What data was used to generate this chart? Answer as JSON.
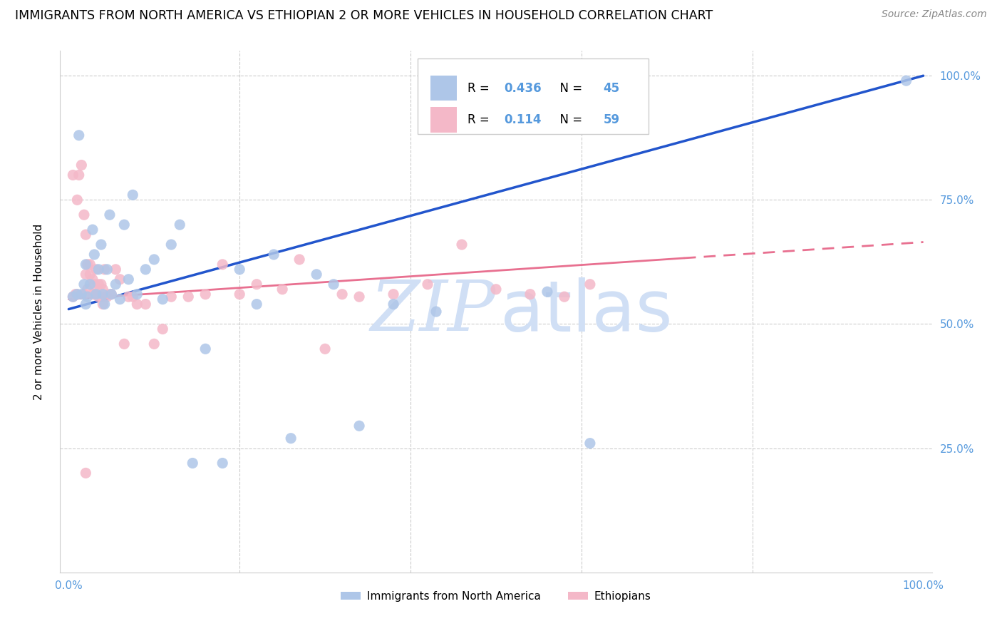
{
  "title": "IMMIGRANTS FROM NORTH AMERICA VS ETHIOPIAN 2 OR MORE VEHICLES IN HOUSEHOLD CORRELATION CHART",
  "source": "Source: ZipAtlas.com",
  "ylabel": "2 or more Vehicles in Household",
  "legend_r1": "R = 0.436",
  "legend_n1": "N = 45",
  "legend_r2": "R =  0.114",
  "legend_n2": "N = 59",
  "blue_color": "#aec6e8",
  "pink_color": "#f4b8c8",
  "trend_blue": "#2255cc",
  "trend_pink": "#e87090",
  "watermark_zip": "ZIP",
  "watermark_atlas": "atlas",
  "watermark_color": "#d0dff5",
  "tick_color": "#5599dd",
  "blue_scatter_x": [
    0.005,
    0.01,
    0.012,
    0.015,
    0.018,
    0.02,
    0.02,
    0.022,
    0.025,
    0.028,
    0.03,
    0.032,
    0.035,
    0.038,
    0.04,
    0.042,
    0.045,
    0.048,
    0.05,
    0.055,
    0.06,
    0.065,
    0.07,
    0.075,
    0.08,
    0.09,
    0.1,
    0.11,
    0.12,
    0.13,
    0.145,
    0.16,
    0.18,
    0.2,
    0.22,
    0.24,
    0.26,
    0.29,
    0.31,
    0.34,
    0.38,
    0.43,
    0.56,
    0.61,
    0.98
  ],
  "blue_scatter_y": [
    0.555,
    0.56,
    0.88,
    0.56,
    0.58,
    0.54,
    0.62,
    0.555,
    0.58,
    0.69,
    0.64,
    0.56,
    0.61,
    0.66,
    0.56,
    0.54,
    0.61,
    0.72,
    0.56,
    0.58,
    0.55,
    0.7,
    0.59,
    0.76,
    0.56,
    0.61,
    0.63,
    0.55,
    0.66,
    0.7,
    0.22,
    0.45,
    0.22,
    0.61,
    0.54,
    0.64,
    0.27,
    0.6,
    0.58,
    0.295,
    0.54,
    0.525,
    0.565,
    0.26,
    0.99
  ],
  "pink_scatter_x": [
    0.005,
    0.005,
    0.008,
    0.01,
    0.01,
    0.012,
    0.015,
    0.018,
    0.018,
    0.02,
    0.02,
    0.022,
    0.022,
    0.025,
    0.025,
    0.028,
    0.028,
    0.03,
    0.03,
    0.032,
    0.032,
    0.035,
    0.035,
    0.038,
    0.038,
    0.04,
    0.04,
    0.042,
    0.045,
    0.048,
    0.05,
    0.055,
    0.06,
    0.065,
    0.07,
    0.075,
    0.08,
    0.09,
    0.1,
    0.11,
    0.12,
    0.14,
    0.16,
    0.18,
    0.2,
    0.22,
    0.25,
    0.27,
    0.3,
    0.32,
    0.34,
    0.38,
    0.42,
    0.46,
    0.5,
    0.54,
    0.58,
    0.61,
    0.02
  ],
  "pink_scatter_y": [
    0.555,
    0.8,
    0.56,
    0.75,
    0.56,
    0.8,
    0.82,
    0.56,
    0.72,
    0.68,
    0.6,
    0.62,
    0.57,
    0.6,
    0.62,
    0.59,
    0.56,
    0.56,
    0.58,
    0.61,
    0.56,
    0.58,
    0.555,
    0.555,
    0.58,
    0.54,
    0.57,
    0.61,
    0.555,
    0.56,
    0.56,
    0.61,
    0.59,
    0.46,
    0.555,
    0.555,
    0.54,
    0.54,
    0.46,
    0.49,
    0.555,
    0.555,
    0.56,
    0.62,
    0.56,
    0.58,
    0.57,
    0.63,
    0.45,
    0.56,
    0.555,
    0.56,
    0.58,
    0.66,
    0.57,
    0.56,
    0.555,
    0.58,
    0.2
  ],
  "xlim": [
    0.0,
    1.0
  ],
  "ylim": [
    0.0,
    1.0
  ],
  "xtick_vals": [
    0.0,
    0.2,
    0.4,
    0.6,
    0.8,
    1.0
  ],
  "xtick_labels": [
    "0.0%",
    "",
    "",
    "",
    "",
    "100.0%"
  ],
  "ytick_vals": [
    0.25,
    0.5,
    0.75,
    1.0
  ],
  "ytick_labels": [
    "25.0%",
    "50.0%",
    "75.0%",
    "100.0%"
  ]
}
